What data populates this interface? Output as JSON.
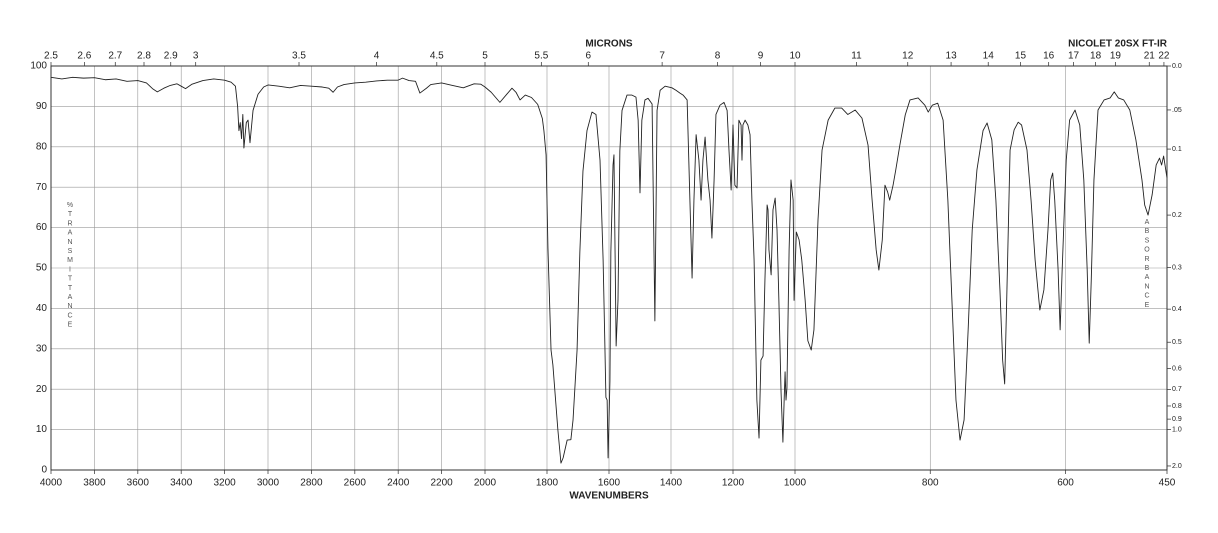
{
  "chart_data": {
    "type": "line",
    "title": "NICOLET 20SX FT-IR",
    "x_label": "WAVENUMBERS",
    "x2_label": "MICRONS",
    "y_label": "%TRANSMITTANCE",
    "y2_label": "ABSORBANCE",
    "xlim": [
      4000,
      450
    ],
    "xscale_breaks": [
      2000,
      1000
    ],
    "xticks": [
      4000,
      3800,
      3600,
      3400,
      3200,
      3000,
      2800,
      2600,
      2400,
      2200,
      2000,
      1800,
      1600,
      1400,
      1200,
      1000,
      800,
      600,
      450
    ],
    "x2ticks": [
      2.5,
      2.6,
      2.7,
      2.8,
      2.9,
      3,
      3.5,
      4,
      4.5,
      5,
      5.5,
      6,
      7,
      8,
      9,
      10,
      11,
      12,
      13,
      14,
      15,
      16,
      17,
      18,
      19,
      21,
      22
    ],
    "ylim": [
      0,
      100
    ],
    "yticks": [
      0,
      10,
      20,
      30,
      40,
      50,
      60,
      70,
      80,
      90,
      100
    ],
    "y2scale": "absorbance",
    "y2ticks": [
      {
        "value": 0,
        "label": "0.0"
      },
      {
        "value": 0.05,
        "label": ".05"
      },
      0.1,
      0.2,
      0.3,
      0.4,
      0.5,
      0.6,
      0.7,
      0.8,
      0.9,
      {
        "value": 1,
        "label": "1.0"
      },
      {
        "value": 2,
        "label": "2.0"
      }
    ],
    "grid": true,
    "color": "#222222",
    "x": [
      4000,
      3950,
      3900,
      3850,
      3800,
      3750,
      3700,
      3650,
      3600,
      3560,
      3530,
      3510,
      3480,
      3450,
      3420,
      3400,
      3380,
      3350,
      3300,
      3250,
      3200,
      3170,
      3150,
      3140,
      3134,
      3128,
      3122,
      3116,
      3111,
      3100,
      3092,
      3083,
      3069,
      3046,
      3020,
      3000,
      2950,
      2900,
      2850,
      2800,
      2750,
      2720,
      2700,
      2680,
      2650,
      2600,
      2550,
      2500,
      2450,
      2400,
      2380,
      2350,
      2320,
      2300,
      2270,
      2250,
      2200,
      2150,
      2100,
      2050,
      2020,
      2000,
      1980,
      1952,
      1930,
      1913,
      1900,
      1887,
      1870,
      1850,
      1830,
      1815,
      1810,
      1803,
      1797,
      1787,
      1781,
      1765,
      1755,
      1748,
      1735,
      1723,
      1716,
      1703,
      1694,
      1684,
      1671,
      1655,
      1642,
      1629,
      1619,
      1613,
      1610,
      1606,
      1603,
      1597,
      1594,
      1587,
      1584,
      1577,
      1571,
      1565,
      1558,
      1542,
      1526,
      1513,
      1506,
      1500,
      1494,
      1484,
      1474,
      1461,
      1452,
      1445,
      1435,
      1419,
      1397,
      1384,
      1371,
      1361,
      1348,
      1339,
      1332,
      1326,
      1319,
      1310,
      1303,
      1297,
      1290,
      1281,
      1274,
      1268,
      1261,
      1255,
      1242,
      1229,
      1219,
      1213,
      1206,
      1200,
      1194,
      1187,
      1181,
      1174,
      1171,
      1168,
      1161,
      1152,
      1145,
      1139,
      1132,
      1123,
      1116,
      1110,
      1103,
      1097,
      1090,
      1087,
      1084,
      1077,
      1071,
      1064,
      1058,
      1052,
      1045,
      1039,
      1035,
      1032,
      1029,
      1026,
      1019,
      1013,
      1006,
      1003,
      998,
      994,
      990,
      985,
      981,
      976,
      972,
      966,
      960,
      951,
      941,
      931,
      922,
      911,
      901,
      892,
      886,
      880,
      876,
      871,
      867,
      863,
      860,
      855,
      851,
      845,
      837,
      830,
      818,
      808,
      803,
      797,
      789,
      781,
      774,
      768,
      762,
      756,
      750,
      744,
      738,
      731,
      722,
      716,
      709,
      703,
      697,
      693,
      690,
      687,
      682,
      676,
      670,
      665,
      657,
      651,
      645,
      638,
      632,
      626,
      622,
      619,
      616,
      611,
      608,
      605,
      599,
      594,
      586,
      579,
      573,
      568,
      565,
      562,
      558,
      552,
      543,
      534,
      528,
      522,
      514,
      505,
      496,
      487,
      483,
      478,
      472,
      466,
      461,
      458,
      455,
      450
    ],
    "values": [
      97.2,
      96.8,
      97.2,
      97,
      97.1,
      96.6,
      96.8,
      96.2,
      96.4,
      95.8,
      94.3,
      93.6,
      94.5,
      95.2,
      95.6,
      95,
      94.4,
      95.5,
      96.4,
      96.8,
      96.5,
      96,
      95,
      90,
      84,
      86,
      82,
      88,
      79.7,
      86,
      86.6,
      81,
      89,
      93,
      94.8,
      95.3,
      95,
      94.6,
      95.2,
      95,
      94.8,
      94.5,
      93.5,
      94.8,
      95.4,
      95.8,
      96,
      96.3,
      96.5,
      96.5,
      97,
      96.4,
      96.2,
      93.3,
      94.5,
      95.4,
      95.8,
      95.2,
      94.6,
      95.6,
      95.5,
      94.8,
      93.5,
      91,
      93,
      94.5,
      93.5,
      91.6,
      92.8,
      92.2,
      90.5,
      87,
      84,
      78,
      55,
      29.7,
      26,
      10,
      1.7,
      3,
      7.4,
      7.5,
      12.4,
      29.7,
      54,
      74,
      84,
      88.6,
      88,
      76.7,
      52,
      29.7,
      18,
      17.3,
      3,
      22,
      54,
      75.5,
      78,
      30.7,
      42,
      79,
      89,
      92.8,
      92.8,
      92.3,
      86.6,
      68.6,
      86.6,
      91.6,
      92,
      90.6,
      36.9,
      89,
      94,
      95,
      94.6,
      94,
      93.3,
      92.8,
      91.6,
      66.8,
      47.5,
      66.8,
      83,
      76.7,
      66.8,
      76.7,
      82.4,
      71.8,
      66.8,
      57.4,
      71.8,
      88,
      90.3,
      91,
      89,
      79.2,
      69.3,
      85.4,
      70.5,
      69.8,
      86.6,
      85.4,
      76.7,
      85.4,
      86.6,
      85.4,
      83,
      66.8,
      52,
      17.3,
      7.9,
      27.2,
      28.2,
      47,
      65.6,
      64.4,
      54.5,
      48.3,
      64.4,
      67.3,
      59.4,
      42,
      19.3,
      6.9,
      17.3,
      24.3,
      17.3,
      20.3,
      54.5,
      71.8,
      66.8,
      42,
      58.9,
      57,
      52,
      42,
      32,
      29.7,
      34.7,
      61.9,
      79.2,
      86.6,
      89.6,
      89.6,
      88,
      89.1,
      87.1,
      80.4,
      66.8,
      54.5,
      49.5,
      56.9,
      70.5,
      68.8,
      66.8,
      70.5,
      74.3,
      80.4,
      87.9,
      91.6,
      92.1,
      90.3,
      88.6,
      90.3,
      90.8,
      86.6,
      66.8,
      42,
      17.3,
      7.4,
      12.4,
      34.7,
      59.4,
      74.3,
      84,
      85.9,
      81.7,
      66.8,
      44.6,
      27.2,
      21.3,
      42,
      79.2,
      84.2,
      86.1,
      85.4,
      79.2,
      66.8,
      52,
      39.6,
      44.6,
      59.4,
      71.8,
      73.5,
      66.8,
      49.5,
      34.7,
      49.5,
      76.7,
      86.6,
      89.1,
      85.4,
      71.8,
      49.5,
      31.4,
      47,
      71.8,
      89.1,
      91.6,
      92.1,
      93.6,
      92.1,
      91.6,
      89.1,
      81.7,
      71.8,
      65.6,
      63.1,
      68.1,
      75.5,
      77.2,
      75.5,
      77.7,
      72.3
    ]
  }
}
